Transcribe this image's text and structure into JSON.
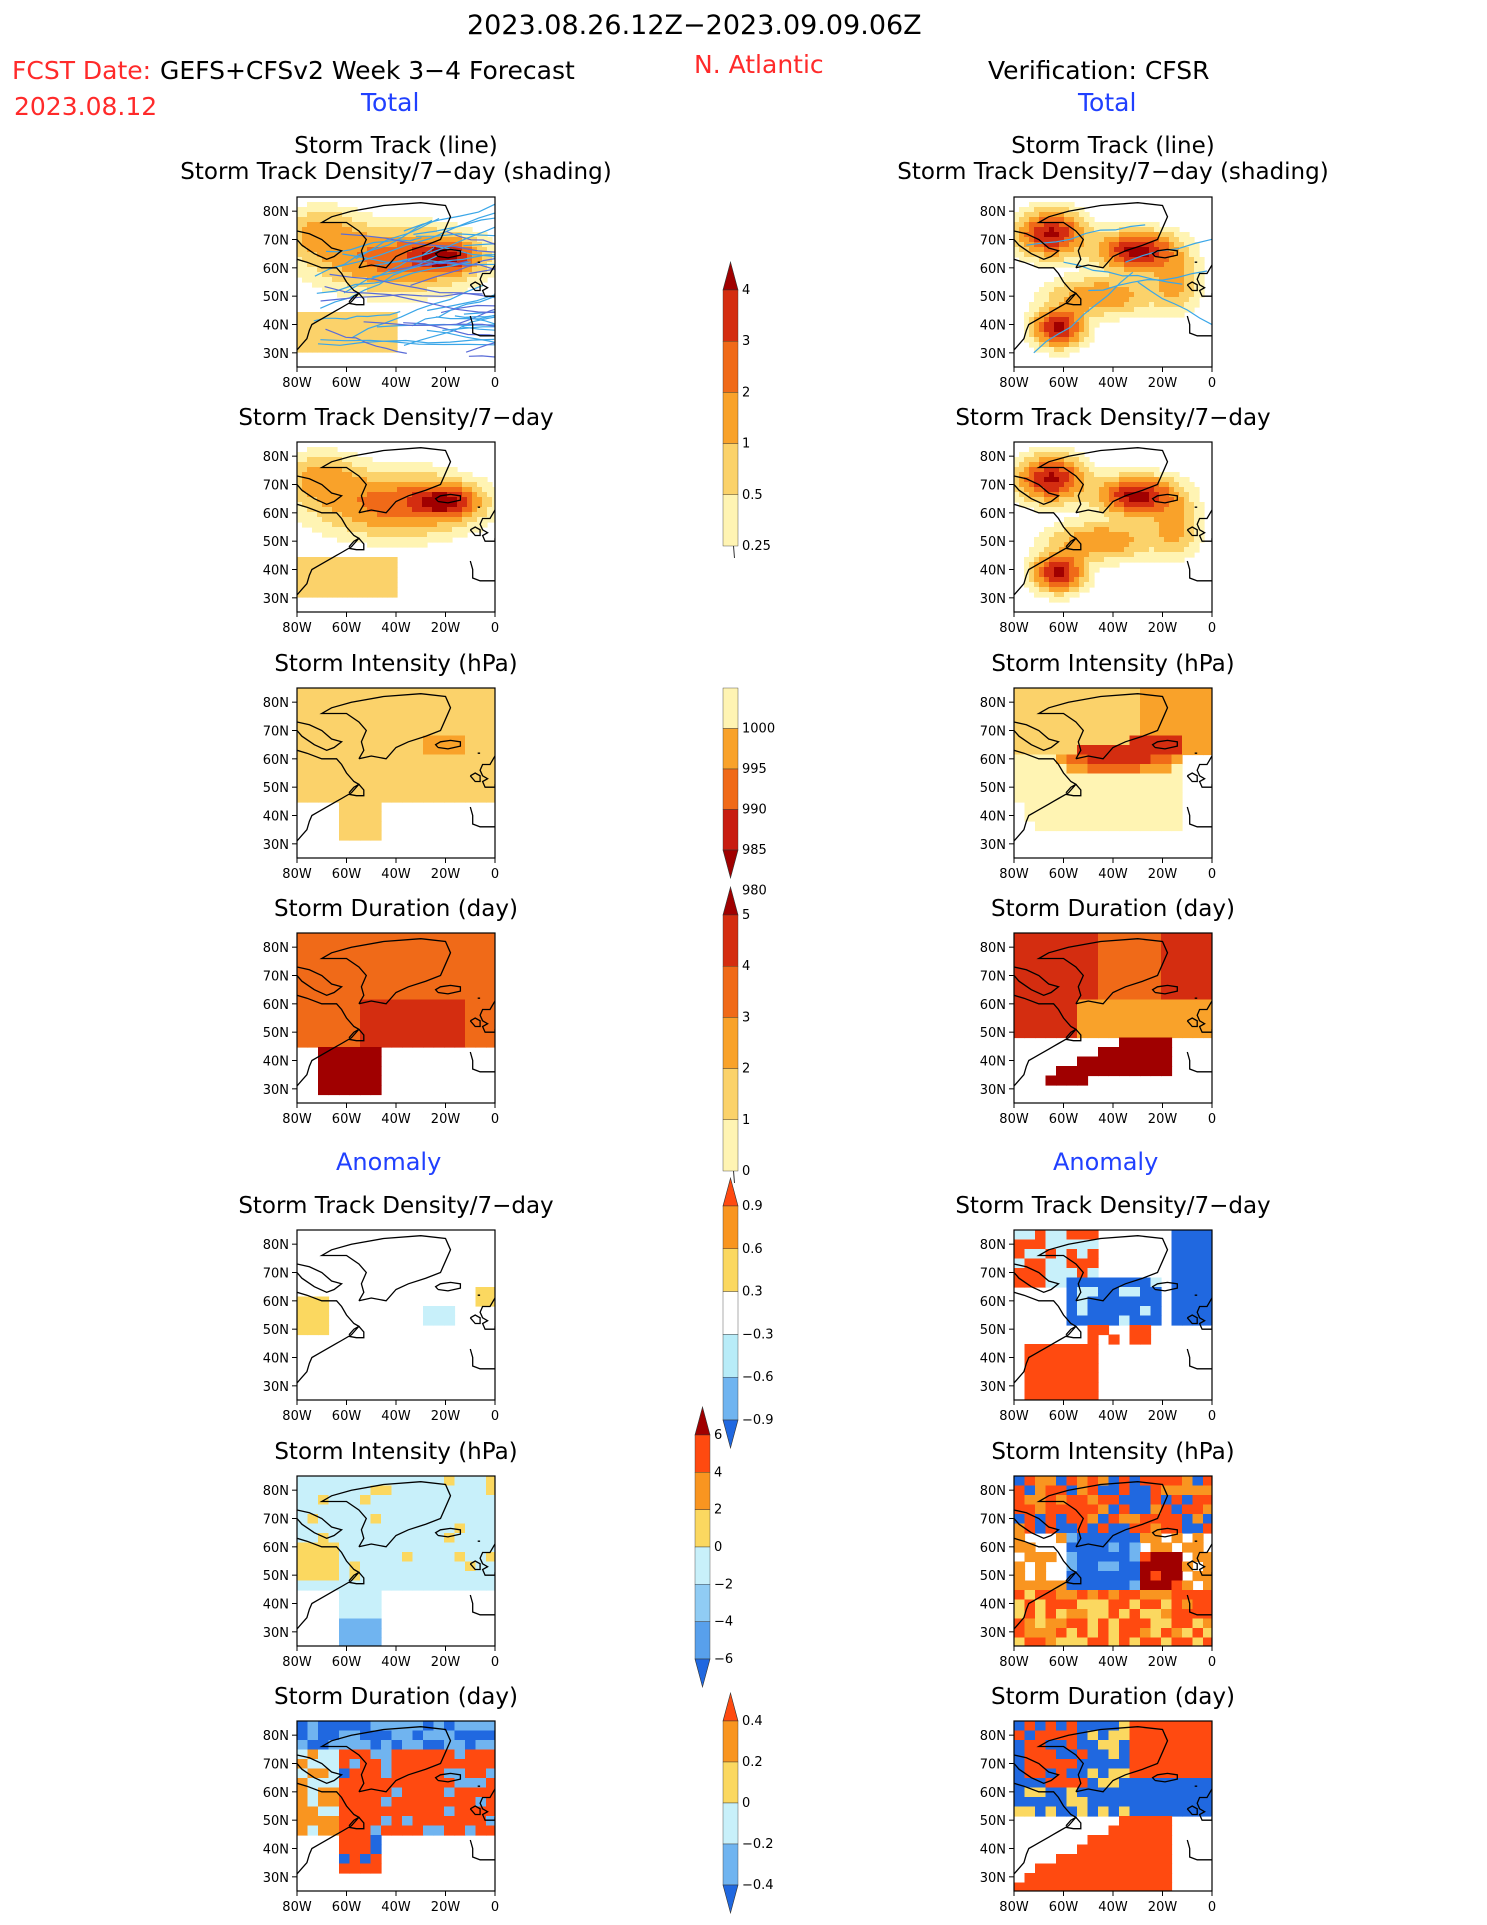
{
  "header": {
    "date_range": "2023.08.26.12Z−2023.09.09.06Z",
    "fcst_date_label": "FCST Date:",
    "fcst_model": "GEFS+CFSv2 Week 3−4 Forecast",
    "fcst_date": "2023.08.12",
    "region": "N. Atlantic",
    "verification": "Verification: CFSR",
    "left_total": "Total",
    "right_total": "Total"
  },
  "sections": {
    "left_anomaly": "Anomaly",
    "right_anomaly": "Anomaly"
  },
  "map_axes": {
    "x_ticks": [
      "80W",
      "60W",
      "40W",
      "20W",
      "0"
    ],
    "y_ticks": [
      "80N",
      "70N",
      "60N",
      "50N",
      "40N",
      "30N"
    ]
  },
  "panels": [
    {
      "side": "left",
      "title_l1": "Storm Track (line)",
      "title_l2": "Storm Track Density/7−day (shading)"
    },
    {
      "side": "right",
      "title_l1": "Storm Track (line)",
      "title_l2": "Storm Track Density/7−day (shading)"
    },
    {
      "side": "left",
      "title_l1": "Storm Track Density/7−day",
      "title_l2": ""
    },
    {
      "side": "right",
      "title_l1": "Storm Track Density/7−day",
      "title_l2": ""
    },
    {
      "side": "left",
      "title_l1": "Storm Intensity (hPa)",
      "title_l2": ""
    },
    {
      "side": "right",
      "title_l1": "Storm Intensity (hPa)",
      "title_l2": ""
    },
    {
      "side": "left",
      "title_l1": "Storm Duration (day)",
      "title_l2": ""
    },
    {
      "side": "right",
      "title_l1": "Storm Duration (day)",
      "title_l2": ""
    },
    {
      "side": "left",
      "title_l1": "Storm Track Density/7−day",
      "title_l2": ""
    },
    {
      "side": "right",
      "title_l1": "Storm Track Density/7−day",
      "title_l2": ""
    },
    {
      "side": "left",
      "title_l1": "Storm Intensity (hPa)",
      "title_l2": ""
    },
    {
      "side": "right",
      "title_l1": "Storm Intensity (hPa)",
      "title_l2": ""
    },
    {
      "side": "left",
      "title_l1": "Storm Duration (day)",
      "title_l2": ""
    },
    {
      "side": "right",
      "title_l1": "Storm Duration (day)",
      "title_l2": ""
    }
  ],
  "colorbars": [
    {
      "id": "track-density",
      "labels": [
        "4",
        "3",
        "2",
        "1",
        "0.5",
        "0.25"
      ],
      "colors": [
        "#a00000",
        "#d42d10",
        "#f06a18",
        "#f9a22a",
        "#fbd26a",
        "#fff4b3"
      ],
      "top_arrow": true,
      "bottom_arrow": false
    },
    {
      "id": "intensity",
      "labels": [
        "1000",
        "995",
        "990",
        "985",
        "980"
      ],
      "colors": [
        "#fff4b3",
        "#f9a22a",
        "#f06a18",
        "#c81c10",
        "#a00000"
      ],
      "top_arrow": false,
      "bottom_arrow": true
    },
    {
      "id": "duration",
      "labels": [
        "5",
        "4",
        "3",
        "2",
        "1",
        "0"
      ],
      "colors": [
        "#a00000",
        "#d42d10",
        "#f06a18",
        "#f9a22a",
        "#fbd26a",
        "#fff4b3"
      ],
      "top_arrow": true,
      "bottom_arrow": false
    },
    {
      "id": "anom-density",
      "labels": [
        "0.9",
        "0.6",
        "0.3",
        "−0.3",
        "−0.6",
        "−0.9"
      ],
      "colors": [
        "#ff4a10",
        "#f99520",
        "#fbd860",
        "#ffffff",
        "#b8ecf8",
        "#70b4f0",
        "#2068e0"
      ],
      "top_arrow": true,
      "bottom_arrow": true
    },
    {
      "id": "anom-intensity",
      "labels": [
        "6",
        "4",
        "2",
        "0",
        "−2",
        "−4",
        "−6"
      ],
      "colors": [
        "#a00000",
        "#ff4a10",
        "#f99520",
        "#fbd860",
        "#c8f0fa",
        "#90ccf4",
        "#58a0ec",
        "#2068e0"
      ],
      "top_arrow": true,
      "bottom_arrow": true
    },
    {
      "id": "anom-duration",
      "labels": [
        "0.4",
        "0.2",
        "0",
        "−0.2",
        "−0.4"
      ],
      "colors": [
        "#ff4a10",
        "#f99520",
        "#fbd860",
        "#c8f0fa",
        "#70b4f0",
        "#2068e0"
      ],
      "top_arrow": true,
      "bottom_arrow": true
    }
  ],
  "chart_data": [
    {
      "type": "heatmap",
      "title": "Storm Track (line) / Storm Track Density/7−day (shading)",
      "source": "GEFS+CFSv2",
      "x": [
        "80W",
        "60W",
        "40W",
        "20W",
        "0"
      ],
      "y": [
        "30N",
        "40N",
        "50N",
        "60N",
        "70N",
        "80N"
      ],
      "shading_max_band": "3–4"
    },
    {
      "type": "heatmap",
      "title": "Storm Track (line) / Storm Track Density/7−day (shading)",
      "source": "CFSR",
      "shading_max_band": ">4"
    },
    {
      "type": "heatmap",
      "title": "Storm Track Density/7−day",
      "source": "GEFS+CFSv2",
      "levels": [
        0.25,
        0.5,
        1,
        2,
        3,
        4
      ]
    },
    {
      "type": "heatmap",
      "title": "Storm Track Density/7−day",
      "source": "CFSR",
      "levels": [
        0.25,
        0.5,
        1,
        2,
        3,
        4
      ]
    },
    {
      "type": "heatmap",
      "title": "Storm Intensity (hPa)",
      "source": "GEFS+CFSv2",
      "levels": [
        1000,
        995,
        990,
        985,
        980
      ]
    },
    {
      "type": "heatmap",
      "title": "Storm Intensity (hPa)",
      "source": "CFSR",
      "levels": [
        1000,
        995,
        990,
        985,
        980
      ]
    },
    {
      "type": "heatmap",
      "title": "Storm Duration (day)",
      "source": "GEFS+CFSv2",
      "levels": [
        0,
        1,
        2,
        3,
        4,
        5
      ]
    },
    {
      "type": "heatmap",
      "title": "Storm Duration (day)",
      "source": "CFSR",
      "levels": [
        0,
        1,
        2,
        3,
        4,
        5
      ]
    },
    {
      "type": "heatmap",
      "title": "Anomaly Storm Track Density/7−day",
      "source": "GEFS+CFSv2",
      "levels": [
        -0.9,
        -0.6,
        -0.3,
        0.3,
        0.6,
        0.9
      ]
    },
    {
      "type": "heatmap",
      "title": "Anomaly Storm Track Density/7−day",
      "source": "CFSR",
      "levels": [
        -0.9,
        -0.6,
        -0.3,
        0.3,
        0.6,
        0.9
      ]
    },
    {
      "type": "heatmap",
      "title": "Anomaly Storm Intensity (hPa)",
      "source": "GEFS+CFSv2",
      "levels": [
        -6,
        -4,
        -2,
        0,
        2,
        4,
        6
      ]
    },
    {
      "type": "heatmap",
      "title": "Anomaly Storm Intensity (hPa)",
      "source": "CFSR",
      "levels": [
        -6,
        -4,
        -2,
        0,
        2,
        4,
        6
      ]
    },
    {
      "type": "heatmap",
      "title": "Anomaly Storm Duration (day)",
      "source": "GEFS+CFSv2",
      "levels": [
        -0.4,
        -0.2,
        0,
        0.2,
        0.4
      ]
    },
    {
      "type": "heatmap",
      "title": "Anomaly Storm Duration (day)",
      "source": "CFSR",
      "levels": [
        -0.4,
        -0.2,
        0,
        0.2,
        0.4
      ]
    }
  ]
}
